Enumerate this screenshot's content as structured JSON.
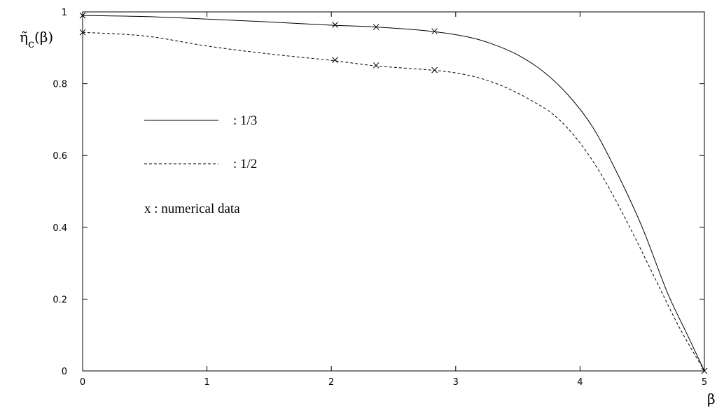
{
  "chart_data": {
    "type": "line",
    "xlabel": "β",
    "ylabel": "η̃",
    "ylabel_sub": "c",
    "ylabel_tail": "(β)",
    "xlim": [
      0,
      5
    ],
    "ylim": [
      0,
      1
    ],
    "x_ticks": [
      0,
      1,
      2,
      3,
      4,
      5
    ],
    "y_ticks": [
      0,
      0.2,
      0.4,
      0.6,
      0.8,
      1
    ],
    "grid": false,
    "legend_placement": "center-left",
    "series": [
      {
        "name": ": 1/3",
        "style": "solid",
        "color": "#000000",
        "x": [
          0,
          0.5,
          1,
          1.5,
          2,
          2.35,
          2.8,
          3.1,
          3.3,
          3.5,
          3.7,
          3.9,
          4.1,
          4.3,
          4.5,
          4.7,
          4.85,
          5
        ],
        "y": [
          0.99,
          0.987,
          0.98,
          0.972,
          0.963,
          0.958,
          0.946,
          0.93,
          0.91,
          0.88,
          0.835,
          0.77,
          0.68,
          0.55,
          0.4,
          0.22,
          0.11,
          0
        ]
      },
      {
        "name": ": 1/2",
        "style": "dashed",
        "color": "#000000",
        "x": [
          0,
          0.5,
          1,
          1.5,
          2,
          2.35,
          2.8,
          3.0,
          3.2,
          3.4,
          3.6,
          3.8,
          4.0,
          4.2,
          4.4,
          4.6,
          4.8,
          5
        ],
        "y": [
          0.943,
          0.933,
          0.905,
          0.883,
          0.865,
          0.85,
          0.838,
          0.83,
          0.815,
          0.79,
          0.755,
          0.71,
          0.635,
          0.53,
          0.4,
          0.26,
          0.12,
          0
        ]
      }
    ],
    "markers": {
      "name": "x : numerical data",
      "points": [
        {
          "x": 0,
          "y": 0.99
        },
        {
          "x": 2.03,
          "y": 0.964
        },
        {
          "x": 2.36,
          "y": 0.958
        },
        {
          "x": 2.83,
          "y": 0.946
        },
        {
          "x": 0,
          "y": 0.943
        },
        {
          "x": 2.03,
          "y": 0.866
        },
        {
          "x": 2.36,
          "y": 0.851
        },
        {
          "x": 2.83,
          "y": 0.838
        },
        {
          "x": 5,
          "y": 0
        }
      ]
    }
  }
}
